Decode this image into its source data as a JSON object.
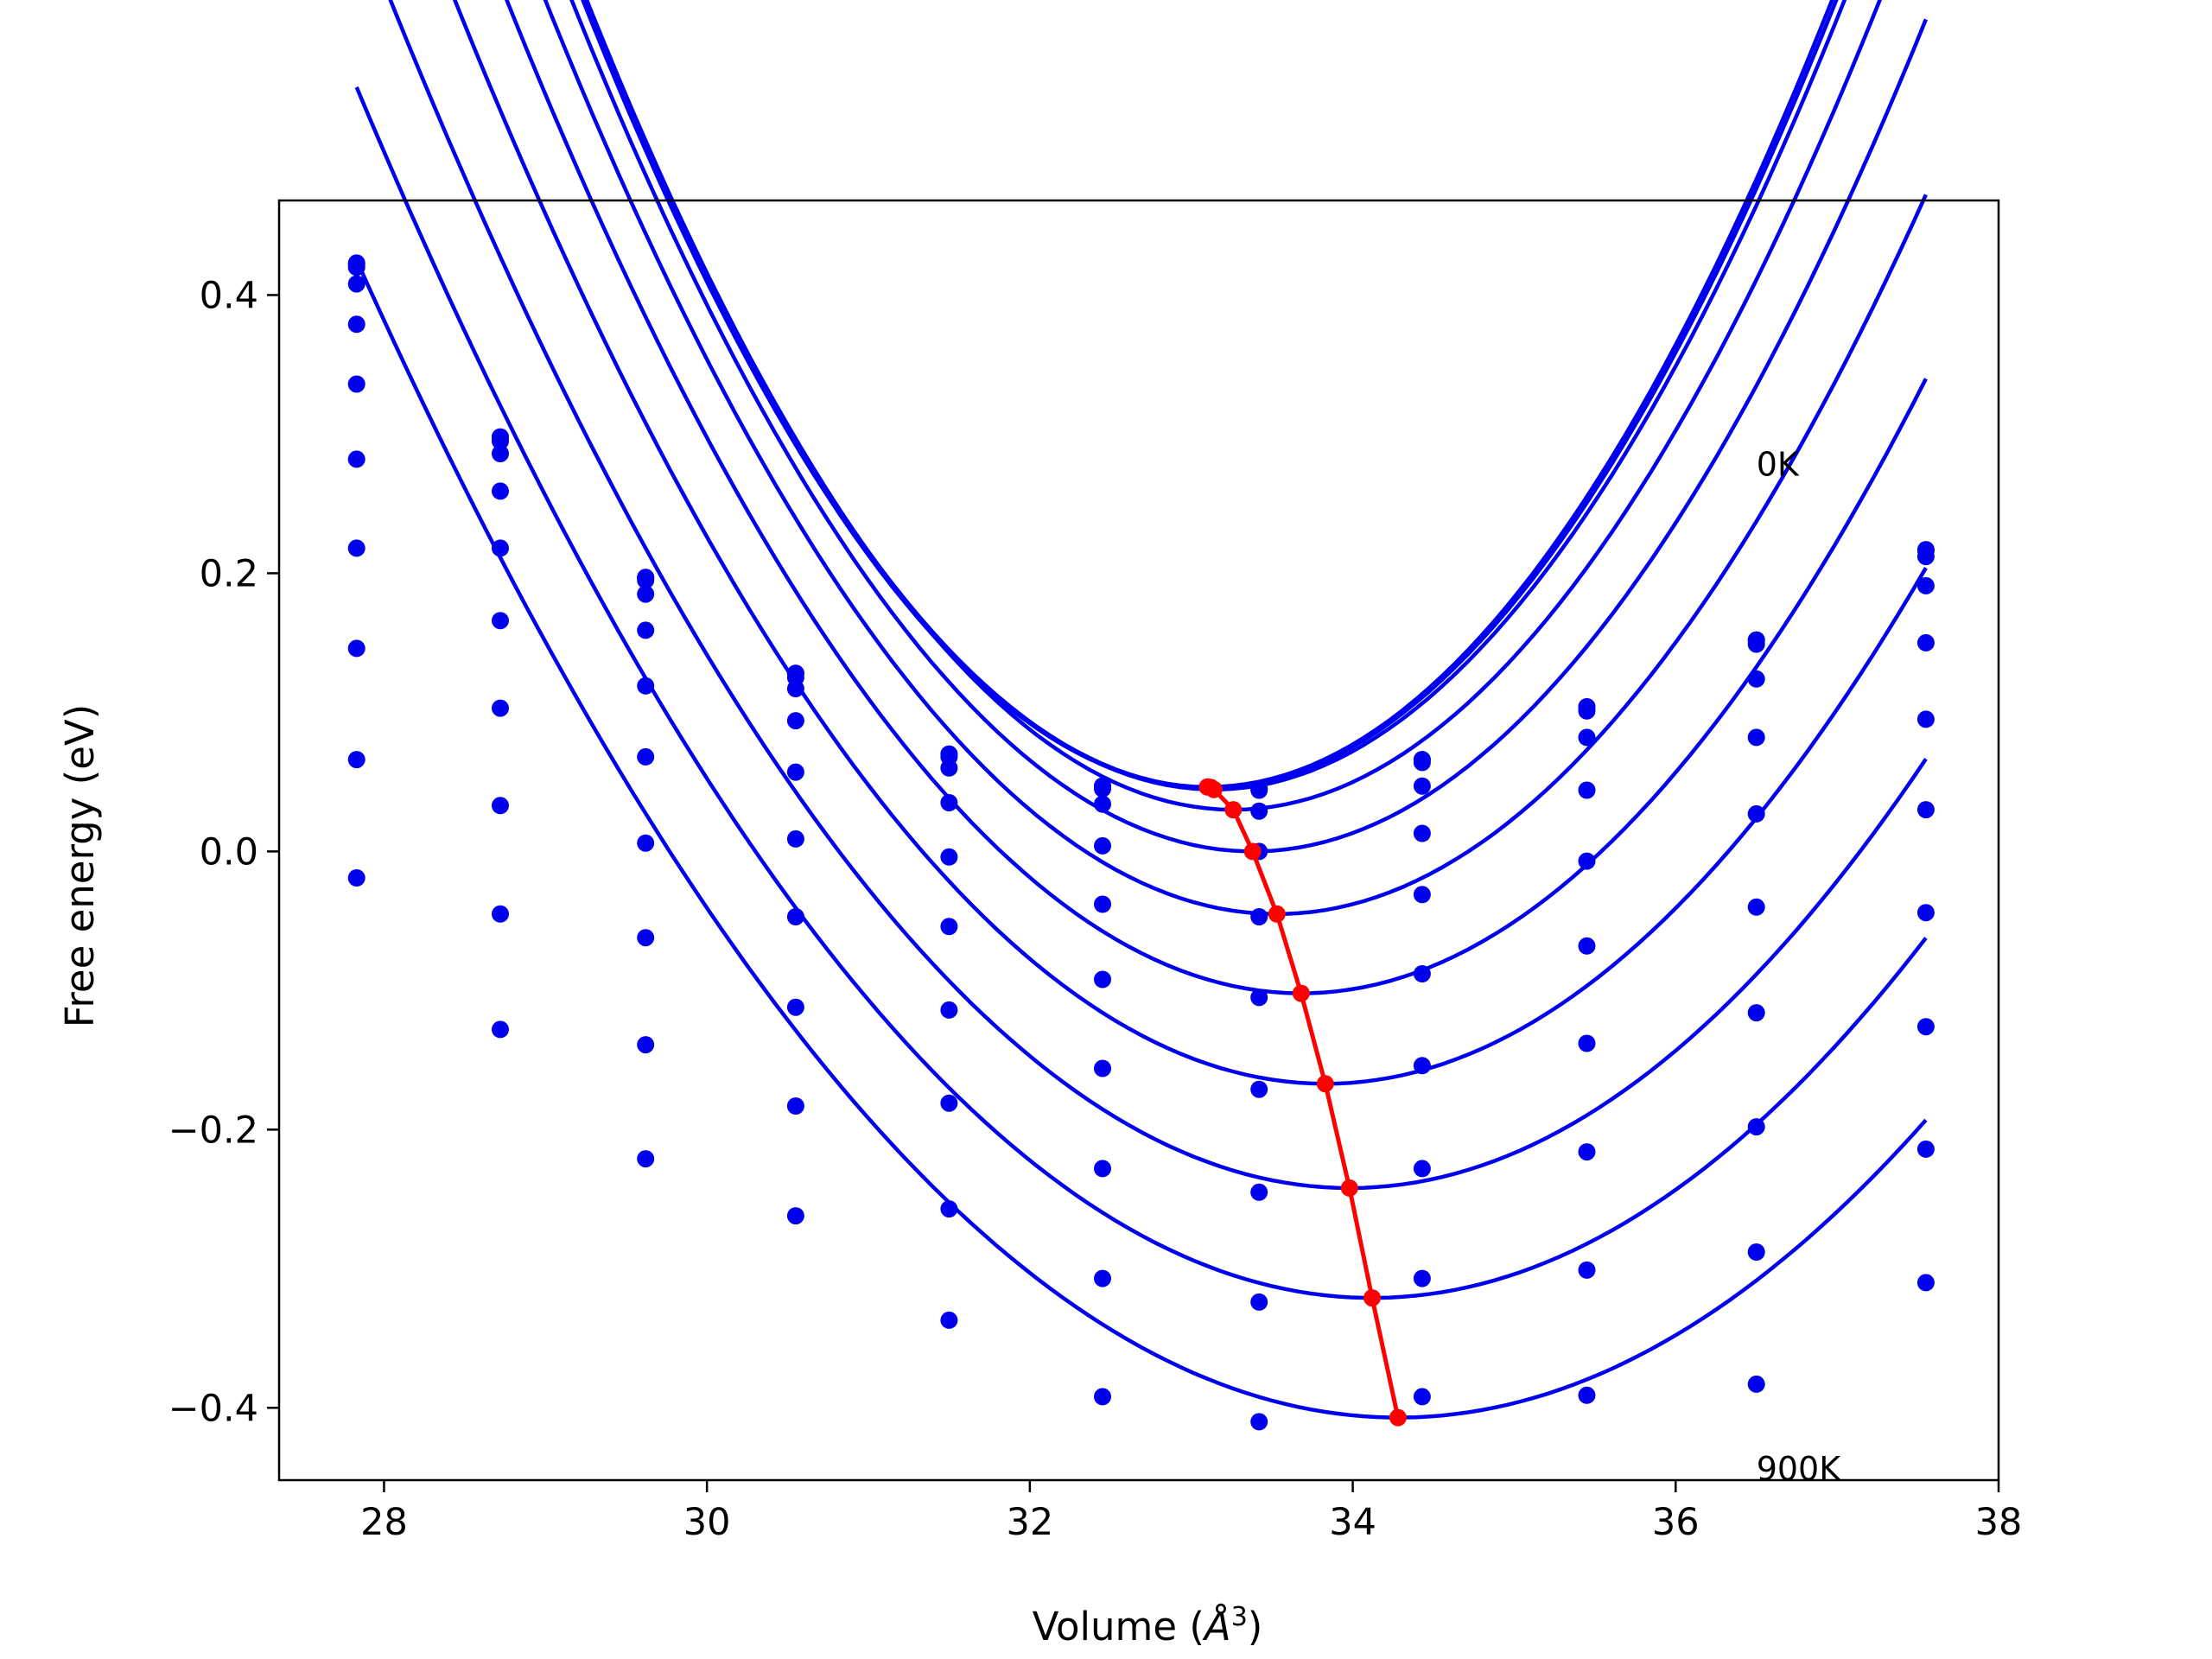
{
  "chart_data": {
    "type": "line",
    "title": "",
    "xlabel": "Volume (",
    "xlabel_unit": "Å",
    "xlabel_exp": "3",
    "xlabel_close": ")",
    "ylabel": "Free energy (eV)",
    "xlim": [
      27.35,
      38.0
    ],
    "ylim": [
      -0.452,
      0.468
    ],
    "xticks": [
      28,
      30,
      32,
      34,
      36,
      38
    ],
    "xtick_labels": [
      "28",
      "30",
      "32",
      "34",
      "36",
      "38"
    ],
    "yticks": [
      -0.4,
      -0.2,
      0.0,
      0.2,
      0.4
    ],
    "ytick_labels": [
      "−0.4",
      "−0.2",
      "0.0",
      "0.2",
      "0.4"
    ],
    "grid": false,
    "legend": "none",
    "colors": {
      "fit": "#0000ee",
      "points": "#0000ee",
      "minima": "#ff0000",
      "axes": "#000000"
    },
    "annotations": [
      {
        "text": "0K",
        "x": 36.5,
        "y": 0.27
      },
      {
        "text": "900K",
        "x": 36.5,
        "y": -0.452
      }
    ],
    "x_points": [
      27.83,
      28.72,
      29.62,
      30.55,
      31.5,
      32.45,
      33.42,
      34.43,
      35.45,
      36.5,
      37.55
    ],
    "series": [
      {
        "points": [
          0.423,
          0.298,
          0.197,
          0.128,
          0.07,
          0.047,
          0.045,
          0.066,
          0.104,
          0.152,
          0.217
        ],
        "fit": {
          "a": 0.0378,
          "v0": 33.1,
          "e0": 0.0463
        }
      },
      {
        "points": [
          0.422,
          0.298,
          0.197,
          0.128,
          0.07,
          0.047,
          0.045,
          0.066,
          0.104,
          0.152,
          0.216
        ],
        "fit": {
          "a": 0.0377,
          "v0": 33.12,
          "e0": 0.046
        }
      },
      {
        "points": [
          0.42,
          0.295,
          0.195,
          0.125,
          0.068,
          0.045,
          0.044,
          0.064,
          0.101,
          0.149,
          0.212
        ],
        "fit": {
          "a": 0.0372,
          "v0": 33.14,
          "e0": 0.0445
        }
      },
      {
        "points": [
          0.408,
          0.286,
          0.185,
          0.117,
          0.06,
          0.034,
          0.029,
          0.047,
          0.082,
          0.124,
          0.191
        ],
        "fit": {
          "a": 0.0363,
          "v0": 33.26,
          "e0": 0.03
        }
      },
      {
        "points": [
          0.379,
          0.259,
          0.159,
          0.094,
          0.035,
          0.004,
          0.0,
          0.013,
          0.044,
          0.082,
          0.15
        ],
        "fit": {
          "a": 0.0344,
          "v0": 33.38,
          "e0": 0.0
        }
      },
      {
        "points": [
          0.336,
          0.218,
          0.119,
          0.057,
          -0.004,
          -0.038,
          -0.047,
          -0.031,
          -0.007,
          0.027,
          0.095
        ],
        "fit": {
          "a": 0.032,
          "v0": 33.53,
          "e0": -0.045
        }
      },
      {
        "points": [
          0.282,
          0.166,
          0.068,
          0.009,
          -0.054,
          -0.092,
          -0.105,
          -0.088,
          -0.068,
          -0.04,
          0.03
        ],
        "fit": {
          "a": 0.0295,
          "v0": 33.68,
          "e0": -0.102
        }
      },
      {
        "points": [
          0.218,
          0.103,
          0.006,
          -0.047,
          -0.114,
          -0.156,
          -0.171,
          -0.154,
          -0.138,
          -0.116,
          -0.044
        ],
        "fit": {
          "a": 0.0268,
          "v0": 33.83,
          "e0": -0.167
        }
      },
      {
        "points": [
          0.146,
          0.033,
          -0.062,
          -0.112,
          -0.181,
          -0.228,
          -0.245,
          -0.228,
          -0.216,
          -0.198,
          -0.126
        ],
        "fit": {
          "a": 0.0242,
          "v0": 33.98,
          "e0": -0.242
        }
      },
      {
        "points": [
          0.066,
          -0.045,
          -0.139,
          -0.183,
          -0.257,
          -0.307,
          -0.324,
          -0.307,
          -0.301,
          -0.288,
          -0.214
        ],
        "fit": {
          "a": 0.022,
          "v0": 34.12,
          "e0": -0.321
        }
      },
      {
        "points": [
          -0.019,
          -0.128,
          -0.221,
          -0.262,
          -0.337,
          -0.392,
          -0.41,
          -0.392,
          -0.391,
          -0.383,
          -0.31
        ],
        "fit": {
          "a": 0.02,
          "v0": 34.28,
          "e0": -0.407
        }
      }
    ],
    "minima": {
      "x": [
        33.1,
        33.12,
        33.14,
        33.26,
        33.38,
        33.53,
        33.68,
        33.83,
        33.98,
        34.12,
        34.28
      ],
      "y": [
        0.0463,
        0.046,
        0.0445,
        0.03,
        0.0,
        -0.045,
        -0.102,
        -0.167,
        -0.242,
        -0.321,
        -0.407
      ]
    }
  }
}
